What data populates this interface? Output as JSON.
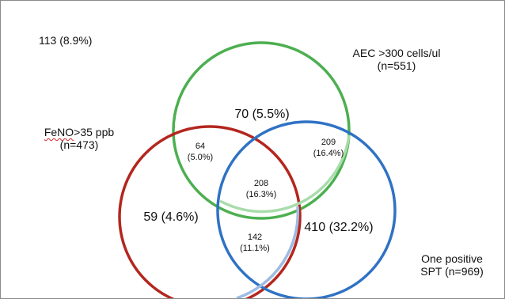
{
  "outside": {
    "count": "113",
    "pct": "(8.9%)"
  },
  "sets": {
    "aec": {
      "line1": "AEC >300 cells/ul",
      "line2": "(n=551)",
      "color": "#4caf50"
    },
    "feno": {
      "word": "FeNO",
      "rest": ">35 ppb",
      "line2": "(n=473)",
      "color": "#b3261e"
    },
    "spt": {
      "line1": "One positive",
      "line2": "SPT (n=969)",
      "color": "#2f72c4"
    }
  },
  "regions": {
    "aec_only": {
      "count": "70",
      "pct": "(5.5%)"
    },
    "feno_only": {
      "count": "59",
      "pct": "(4.6%)"
    },
    "spt_only": {
      "count": "410",
      "pct": "(32.2%)"
    },
    "feno_aec": {
      "count": "64",
      "pct": "(5.0%)"
    },
    "aec_spt": {
      "count": "209",
      "pct": "(16.4%)"
    },
    "all_three": {
      "count": "208",
      "pct": "(16.3%)"
    },
    "feno_spt": {
      "count": "142",
      "pct": "(11.1%)"
    }
  }
}
